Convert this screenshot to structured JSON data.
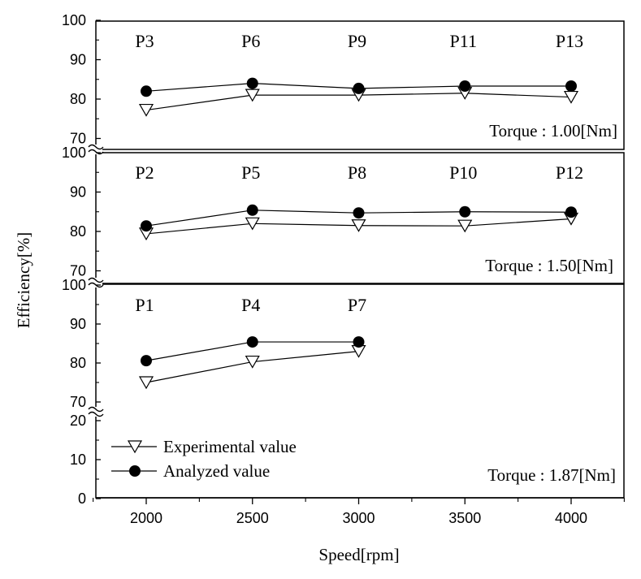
{
  "chart_data": {
    "type": "line",
    "xlabel": "Speed[rpm]",
    "ylabel": "Efficiency[%]",
    "x_ticks": [
      "2000",
      "2500",
      "3000",
      "3500",
      "4000"
    ],
    "xlim": [
      1750,
      4250
    ],
    "panels": [
      {
        "torque": "Torque : 1.00[Nm]",
        "ylim": [
          70,
          100
        ],
        "y_ticks": [
          "70",
          "80",
          "90",
          "100"
        ],
        "x": [
          2000,
          2500,
          3000,
          3500,
          4000
        ],
        "point_labels": [
          "P3",
          "P6",
          "P9",
          "P11",
          "P13"
        ],
        "series": [
          {
            "name": "Experimental value",
            "marker": "open-triangle-down",
            "values": [
              77.2,
              81.0,
              81.0,
              81.5,
              80.5
            ]
          },
          {
            "name": "Analyzed value",
            "marker": "filled-circle",
            "values": [
              82.0,
              84.0,
              82.7,
              83.3,
              83.3
            ]
          }
        ]
      },
      {
        "torque": "Torque : 1.50[Nm]",
        "ylim": [
          70,
          100
        ],
        "y_ticks": [
          "70",
          "80",
          "90",
          "100"
        ],
        "x": [
          2000,
          2500,
          3000,
          3500,
          4000
        ],
        "point_labels": [
          "P2",
          "P5",
          "P8",
          "P10",
          "P12"
        ],
        "series": [
          {
            "name": "Experimental value",
            "marker": "open-triangle-down",
            "values": [
              79.4,
              82.0,
              81.5,
              81.4,
              83.2
            ]
          },
          {
            "name": "Analyzed value",
            "marker": "filled-circle",
            "values": [
              81.4,
              85.4,
              84.7,
              85.0,
              84.9
            ]
          }
        ]
      },
      {
        "torque": "Torque : 1.87[Nm]",
        "y_ticks_upper": [
          "70",
          "80",
          "90",
          "100"
        ],
        "y_ticks_lower": [
          "0",
          "10",
          "20"
        ],
        "ylim_upper": [
          70,
          100
        ],
        "ylim_lower": [
          0,
          20
        ],
        "x": [
          2000,
          2500,
          3000
        ],
        "point_labels": [
          "P1",
          "P4",
          "P7"
        ],
        "series": [
          {
            "name": "Experimental value",
            "marker": "open-triangle-down",
            "values": [
              75.0,
              80.3,
              83.0
            ]
          },
          {
            "name": "Analyzed value",
            "marker": "filled-circle",
            "values": [
              80.6,
              85.4,
              85.4
            ]
          }
        ]
      }
    ],
    "legend": {
      "position": "bottom-left",
      "entries": [
        "Experimental value",
        "Analyzed value"
      ]
    }
  }
}
